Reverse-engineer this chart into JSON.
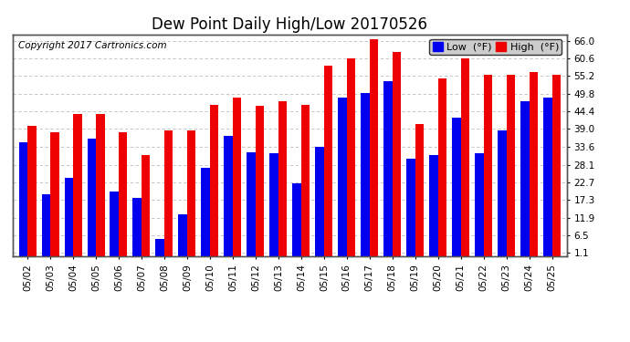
{
  "title": "Dew Point Daily High/Low 20170526",
  "copyright": "Copyright 2017 Cartronics.com",
  "dates": [
    "05/02",
    "05/03",
    "05/04",
    "05/05",
    "05/06",
    "05/07",
    "05/08",
    "05/09",
    "05/10",
    "05/11",
    "05/12",
    "05/13",
    "05/14",
    "05/15",
    "05/16",
    "05/17",
    "05/18",
    "05/19",
    "05/20",
    "05/21",
    "05/22",
    "05/23",
    "05/24",
    "05/25"
  ],
  "low_values": [
    35.0,
    19.0,
    24.0,
    36.0,
    20.0,
    18.0,
    5.5,
    13.0,
    27.0,
    37.0,
    32.0,
    31.5,
    22.5,
    33.5,
    48.5,
    50.0,
    53.5,
    30.0,
    31.0,
    42.5,
    31.5,
    38.5,
    47.5,
    48.5
  ],
  "high_values": [
    40.0,
    38.0,
    43.5,
    43.5,
    38.0,
    31.0,
    38.5,
    38.5,
    46.5,
    48.5,
    46.0,
    47.5,
    46.5,
    58.5,
    60.5,
    66.5,
    62.5,
    40.5,
    54.5,
    60.5,
    55.5,
    55.5,
    56.5,
    55.5
  ],
  "low_color": "#0000ee",
  "high_color": "#ee0000",
  "bg_color": "#ffffff",
  "plot_bg_color": "#ffffff",
  "grid_color": "#bbbbbb",
  "yticks": [
    1.1,
    6.5,
    11.9,
    17.3,
    22.7,
    28.1,
    33.6,
    39.0,
    44.4,
    49.8,
    55.2,
    60.6,
    66.0
  ],
  "ylim": [
    0.0,
    68.0
  ],
  "bar_width": 0.38,
  "title_fontsize": 12,
  "tick_fontsize": 7.5,
  "legend_fontsize": 8,
  "copyright_fontsize": 7.5
}
